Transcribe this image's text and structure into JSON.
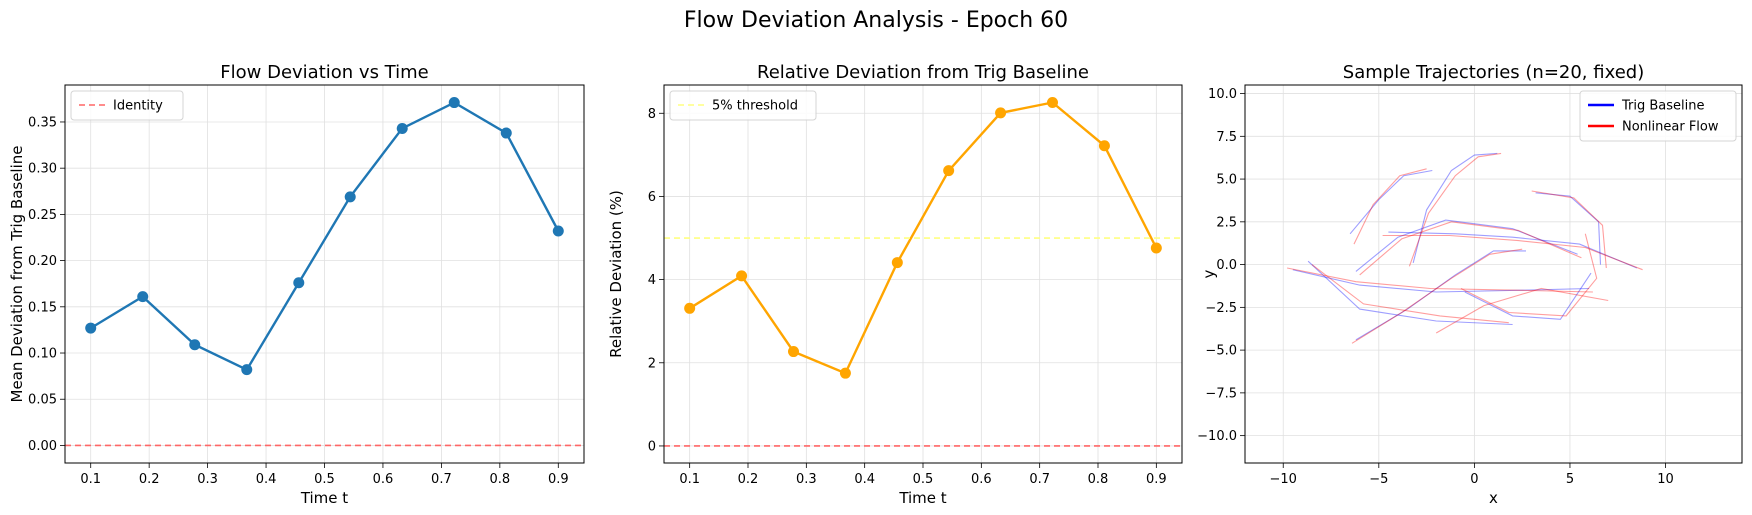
{
  "figure": {
    "suptitle": "Flow Deviation Analysis - Epoch 60"
  },
  "chart_data": [
    {
      "type": "line",
      "title": "Flow Deviation vs Time",
      "xlabel": "Time t",
      "ylabel": "Mean Deviation from Trig Baseline",
      "xlim": [
        0.056,
        0.944
      ],
      "ylim": [
        -0.019,
        0.39
      ],
      "xticks": [
        0.1,
        0.2,
        0.3,
        0.4,
        0.5,
        0.6,
        0.7,
        0.8,
        0.9
      ],
      "xtick_labels": [
        "0.1",
        "0.2",
        "0.3",
        "0.4",
        "0.5",
        "0.6",
        "0.7",
        "0.8",
        "0.9"
      ],
      "yticks": [
        0.0,
        0.05,
        0.1,
        0.15,
        0.2,
        0.25,
        0.3,
        0.35
      ],
      "ytick_labels": [
        "0.00",
        "0.05",
        "0.10",
        "0.15",
        "0.20",
        "0.25",
        "0.30",
        "0.35"
      ],
      "grid": true,
      "legend_position": "top-left",
      "series": [
        {
          "style": "line-markers",
          "color": "#1f77b4",
          "x": [
            0.1,
            0.189,
            0.278,
            0.367,
            0.456,
            0.544,
            0.633,
            0.722,
            0.811,
            0.9
          ],
          "y": [
            0.127,
            0.161,
            0.109,
            0.082,
            0.176,
            0.269,
            0.343,
            0.371,
            0.338,
            0.232
          ]
        },
        {
          "name": "Identity",
          "style": "dashed",
          "color": "#ff6666",
          "hline": 0.0
        }
      ]
    },
    {
      "type": "line",
      "title": "Relative Deviation from Trig Baseline",
      "xlabel": "Time t",
      "ylabel": "Relative Deviation (%)",
      "xlim": [
        0.056,
        0.944
      ],
      "ylim": [
        -0.41,
        8.68
      ],
      "xticks": [
        0.1,
        0.2,
        0.3,
        0.4,
        0.5,
        0.6,
        0.7,
        0.8,
        0.9
      ],
      "xtick_labels": [
        "0.1",
        "0.2",
        "0.3",
        "0.4",
        "0.5",
        "0.6",
        "0.7",
        "0.8",
        "0.9"
      ],
      "yticks": [
        0,
        2,
        4,
        6,
        8
      ],
      "ytick_labels": [
        "0",
        "2",
        "4",
        "6",
        "8"
      ],
      "grid": true,
      "legend_position": "top-left",
      "series": [
        {
          "style": "line-markers",
          "color": "#ffa500",
          "x": [
            0.1,
            0.189,
            0.278,
            0.367,
            0.456,
            0.544,
            0.633,
            0.722,
            0.811,
            0.9
          ],
          "y": [
            3.31,
            4.09,
            2.27,
            1.75,
            4.41,
            6.62,
            8.01,
            8.26,
            7.22,
            4.76
          ]
        },
        {
          "name": "5% threshold",
          "style": "dashed",
          "color": "#ffff80",
          "hline": 5.0
        },
        {
          "style": "dashed",
          "color": "#ff6666",
          "hline": 0.0
        }
      ]
    },
    {
      "type": "line",
      "title": "Sample Trajectories (n=20, fixed)",
      "xlabel": "x",
      "ylabel": "y",
      "xlim": [
        -12.0,
        14.0
      ],
      "ylim": [
        -11.6,
        10.5
      ],
      "xticks": [
        -10,
        -5,
        0,
        5,
        10
      ],
      "xtick_labels": [
        "−10",
        "−5",
        "0",
        "5",
        "10"
      ],
      "yticks": [
        -10.0,
        -7.5,
        -5.0,
        -2.5,
        0.0,
        2.5,
        5.0,
        7.5,
        10.0
      ],
      "ytick_labels": [
        "−10.0",
        "−7.5",
        "−5.0",
        "−2.5",
        "0.0",
        "2.5",
        "5.0",
        "7.5",
        "10.0"
      ],
      "grid": true,
      "legend_position": "top-right",
      "series": [
        {
          "name": "Trig Baseline",
          "color": "#0000ff",
          "paths": [
            [
              [
                -6.5,
                1.8
              ],
              [
                -5.0,
                3.8
              ],
              [
                -3.7,
                5.2
              ],
              [
                -2.2,
                5.5
              ]
            ],
            [
              [
                -3.2,
                0.1
              ],
              [
                -2.5,
                3.2
              ],
              [
                -1.2,
                5.5
              ],
              [
                0,
                6.4
              ],
              [
                1.2,
                6.5
              ]
            ],
            [
              [
                -6.2,
                -0.4
              ],
              [
                -4.0,
                1.6
              ],
              [
                -1.5,
                2.6
              ],
              [
                2.0,
                2.1
              ],
              [
                5.4,
                0.6
              ]
            ],
            [
              [
                -9.5,
                -0.3
              ],
              [
                -6.0,
                -1.2
              ],
              [
                -2.0,
                -1.6
              ],
              [
                2.5,
                -1.5
              ],
              [
                6.0,
                -1.4
              ]
            ],
            [
              [
                -8.7,
                0.2
              ],
              [
                -6.0,
                -2.6
              ],
              [
                -2.0,
                -3.3
              ],
              [
                2.0,
                -3.5
              ]
            ],
            [
              [
                -6.2,
                -4.4
              ],
              [
                -3.5,
                -2.6
              ],
              [
                -1.0,
                -0.6
              ],
              [
                1.0,
                0.8
              ],
              [
                2.7,
                0.8
              ]
            ],
            [
              [
                -0.5,
                -1.6
              ],
              [
                2.0,
                -3.0
              ],
              [
                4.5,
                -3.2
              ],
              [
                6.1,
                -0.5
              ]
            ],
            [
              [
                3.2,
                4.2
              ],
              [
                5.0,
                4.0
              ],
              [
                6.5,
                2.5
              ],
              [
                6.6,
                0.0
              ]
            ],
            [
              [
                -4.5,
                1.9
              ],
              [
                -1.0,
                1.8
              ],
              [
                2.0,
                1.6
              ],
              [
                5.5,
                1.2
              ],
              [
                8.5,
                -0.2
              ]
            ]
          ]
        },
        {
          "name": "Nonlinear Flow",
          "color": "#ff0000",
          "paths": [
            [
              [
                -6.3,
                1.2
              ],
              [
                -5.3,
                3.5
              ],
              [
                -3.9,
                5.2
              ],
              [
                -2.5,
                5.6
              ]
            ],
            [
              [
                -3.4,
                -0.1
              ],
              [
                -2.4,
                3.0
              ],
              [
                -1.0,
                5.2
              ],
              [
                0.2,
                6.3
              ],
              [
                1.4,
                6.5
              ]
            ],
            [
              [
                -6.0,
                -0.6
              ],
              [
                -3.8,
                1.5
              ],
              [
                -1.2,
                2.5
              ],
              [
                2.3,
                2.0
              ],
              [
                5.6,
                0.4
              ]
            ],
            [
              [
                -9.8,
                -0.2
              ],
              [
                -6.2,
                -1.0
              ],
              [
                -2.3,
                -1.4
              ],
              [
                2.2,
                -1.5
              ],
              [
                6.2,
                -1.6
              ]
            ],
            [
              [
                -8.5,
                0.0
              ],
              [
                -5.8,
                -2.3
              ],
              [
                -1.8,
                -3.0
              ],
              [
                1.8,
                -3.4
              ]
            ],
            [
              [
                -6.4,
                -4.6
              ],
              [
                -3.8,
                -2.8
              ],
              [
                -1.2,
                -0.8
              ],
              [
                0.8,
                0.6
              ],
              [
                2.5,
                0.9
              ]
            ],
            [
              [
                -0.7,
                -1.4
              ],
              [
                1.8,
                -2.8
              ],
              [
                4.8,
                -3.0
              ],
              [
                6.4,
                -0.8
              ],
              [
                5.8,
                1.8
              ]
            ],
            [
              [
                3.0,
                4.3
              ],
              [
                5.2,
                3.9
              ],
              [
                6.7,
                2.3
              ],
              [
                6.9,
                -0.2
              ]
            ],
            [
              [
                -4.8,
                1.7
              ],
              [
                -1.3,
                1.7
              ],
              [
                2.3,
                1.4
              ],
              [
                5.8,
                1.0
              ],
              [
                8.8,
                -0.3
              ]
            ],
            [
              [
                -2.0,
                -4.0
              ],
              [
                0.5,
                -2.4
              ],
              [
                3.5,
                -1.4
              ],
              [
                7.0,
                -2.1
              ]
            ]
          ]
        }
      ]
    }
  ]
}
